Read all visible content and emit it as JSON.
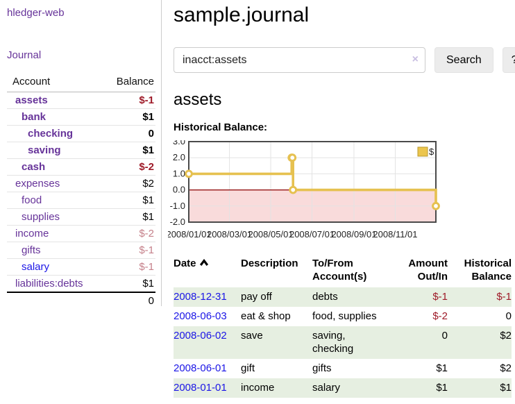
{
  "app": {
    "title": "hledger-web"
  },
  "sidebar": {
    "journal_link": "Journal",
    "accounts_table": {
      "headers": {
        "account": "Account",
        "balance": "Balance"
      },
      "rows": [
        {
          "account": "assets",
          "balance": "$-1",
          "level": 1,
          "bold": true,
          "balance_tone": "neg-strong",
          "link_color": "purple"
        },
        {
          "account": "bank",
          "balance": "$1",
          "level": 2,
          "bold": true,
          "balance_tone": "",
          "link_color": "purple"
        },
        {
          "account": "checking",
          "balance": "0",
          "level": 3,
          "bold": true,
          "balance_tone": "",
          "link_color": "purple"
        },
        {
          "account": "saving",
          "balance": "$1",
          "level": 3,
          "bold": true,
          "balance_tone": "",
          "link_color": "purple"
        },
        {
          "account": "cash",
          "balance": "$-2",
          "level": 2,
          "bold": true,
          "balance_tone": "neg-strong",
          "link_color": "purple"
        },
        {
          "account": "expenses",
          "balance": "$2",
          "level": 1,
          "bold": false,
          "balance_tone": "",
          "link_color": "purple"
        },
        {
          "account": "food",
          "balance": "$1",
          "level": 2,
          "bold": false,
          "balance_tone": "",
          "link_color": "purple"
        },
        {
          "account": "supplies",
          "balance": "$1",
          "level": 2,
          "bold": false,
          "balance_tone": "",
          "link_color": "purple"
        },
        {
          "account": "income",
          "balance": "$-2",
          "level": 1,
          "bold": false,
          "balance_tone": "neg-soft",
          "link_color": "purple"
        },
        {
          "account": "gifts",
          "balance": "$-1",
          "level": 2,
          "bold": false,
          "balance_tone": "neg-soft",
          "link_color": "purple"
        },
        {
          "account": "salary",
          "balance": "$-1",
          "level": 2,
          "bold": false,
          "balance_tone": "neg-soft",
          "link_color": "blue"
        },
        {
          "account": "liabilities:debts",
          "balance": "$1",
          "level": 1,
          "bold": false,
          "balance_tone": "",
          "link_color": "purple"
        }
      ],
      "total": "0"
    }
  },
  "main": {
    "title": "sample.journal",
    "search": {
      "value": "inacct:assets",
      "clear_icon": "×",
      "search_button": "Search",
      "help_button": "?"
    },
    "section_title": "assets",
    "chart_label": "Historical Balance:"
  },
  "chart_data": {
    "type": "line",
    "step": true,
    "title": "Historical Balance:",
    "series": [
      {
        "name": "$",
        "points": [
          {
            "date": "2008-01-01",
            "value": 1
          },
          {
            "date": "2008-06-01",
            "value": 2
          },
          {
            "date": "2008-06-02",
            "value": 2
          },
          {
            "date": "2008-06-03",
            "value": 0
          },
          {
            "date": "2008-12-31",
            "value": -1
          }
        ]
      }
    ],
    "x_range": [
      "2008-01-01",
      "2008-12-31"
    ],
    "x_ticks": [
      "2008/01/01",
      "2008/03/01",
      "2008/05/01",
      "2008/07/01",
      "2008/09/01",
      "2008/11/01"
    ],
    "y_ticks": [
      3.0,
      2.0,
      1.0,
      0.0,
      -1.0,
      -2.0
    ],
    "ylim": [
      -2,
      3
    ],
    "grid": true,
    "legend": {
      "label": "$",
      "position": "top-right"
    },
    "colors": {
      "line": "#e6c150",
      "marker_fill": "#ffffff",
      "negative_fill": "#f9dbdb",
      "zero_line": "#8b0000",
      "border": "#4a4a4a",
      "grid": "#e3e3e3",
      "legend_fill": "#ebc54d",
      "legend_border": "#b9992e"
    }
  },
  "register_table": {
    "headers": [
      {
        "l1": "Date",
        "l2": ""
      },
      {
        "l1": "Description",
        "l2": ""
      },
      {
        "l1": "To/From",
        "l2": "Account(s)"
      },
      {
        "l1": "Amount",
        "l2": "Out/In"
      },
      {
        "l1": "Historical",
        "l2": "Balance"
      }
    ],
    "sort_icon": "chevron-up",
    "rows": [
      {
        "date": "2008-12-31",
        "description": "pay off",
        "accounts": "debts",
        "amount": "$-1",
        "balance": "$-1"
      },
      {
        "date": "2008-06-03",
        "description": "eat & shop",
        "accounts": "food, supplies",
        "amount": "$-2",
        "balance": "0"
      },
      {
        "date": "2008-06-02",
        "description": "save",
        "accounts": "saving,\nchecking",
        "amount": "0",
        "balance": "$2"
      },
      {
        "date": "2008-06-01",
        "description": "gift",
        "accounts": "gifts",
        "amount": "$1",
        "balance": "$2"
      },
      {
        "date": "2008-01-01",
        "description": "income",
        "accounts": "salary",
        "amount": "$1",
        "balance": "$1"
      }
    ]
  },
  "colors": {
    "link_purple": "#663399",
    "link_blue": "#1b15e6",
    "negative_strong": "#9e1a28",
    "negative_soft": "#c5808a",
    "row_stripe_green": "#e6efe1",
    "button_bg": "#ececec"
  }
}
